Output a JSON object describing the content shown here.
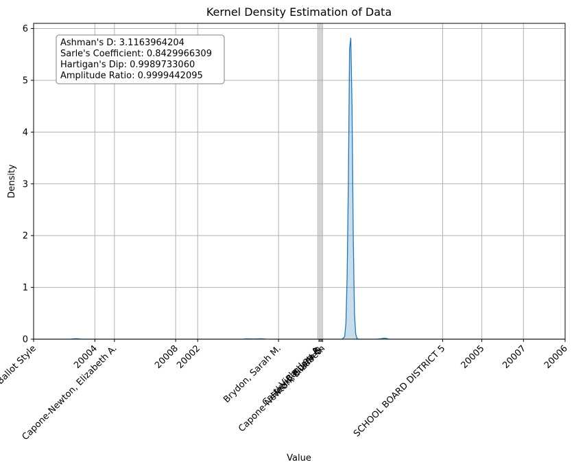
{
  "chart_data": {
    "type": "area",
    "title": "Kernel Density Estimation of Data",
    "xlabel": "Value",
    "ylabel": "Density",
    "ylim": [
      0,
      6.1
    ],
    "grid": true,
    "series_color": "#1f77b4",
    "x_ticks": [
      {
        "label": "Ballot Style",
        "pos": 0.0
      },
      {
        "label": "20004",
        "pos": 0.25
      },
      {
        "label": "Capone-Newton, Elizabeth A.",
        "pos": 0.33
      },
      {
        "label": "20008",
        "pos": 0.58
      },
      {
        "label": "20002",
        "pos": 0.67
      },
      {
        "label": "Brydon, Sarah M.",
        "pos": 1.0
      },
      {
        "label": "Viola, Lou A.",
        "pos": 1.165
      },
      {
        "label": "Castle, Barbara B.",
        "pos": 1.17
      },
      {
        "label": "Hecht, Susan S.",
        "pos": 1.175
      },
      {
        "label": "Capone-Newton, Elizabeth",
        "pos": 1.18
      },
      {
        "label": "SCHOOL BOARD DISTRICT 5",
        "pos": 1.67
      },
      {
        "label": "20005",
        "pos": 1.83
      },
      {
        "label": "20007",
        "pos": 2.0
      },
      {
        "label": "20006",
        "pos": 2.17
      }
    ],
    "y_ticks": [
      0,
      1,
      2,
      3,
      4,
      5,
      6
    ],
    "x_grid_extra": [
      1.16
    ],
    "x_range": [
      0.0,
      2.17
    ],
    "density_curve": {
      "x": [
        0.0,
        0.15,
        0.16,
        0.17,
        0.18,
        0.19,
        0.2,
        0.3,
        0.85,
        0.87,
        0.9,
        0.93,
        0.95,
        1.0,
        1.1,
        1.2,
        1.26,
        1.27,
        1.275,
        1.28,
        1.285,
        1.29,
        1.295,
        1.3,
        1.305,
        1.31,
        1.315,
        1.32,
        1.325,
        1.33,
        1.34,
        1.35,
        1.4,
        1.42,
        1.43,
        1.44,
        1.45,
        1.5,
        1.6,
        2.17
      ],
      "y": [
        0.0,
        0.0,
        0.005,
        0.01,
        0.008,
        0.003,
        0.0,
        0.0,
        0.0,
        0.006,
        0.003,
        0.008,
        0.002,
        0.0,
        0.0,
        0.0,
        0.0,
        0.05,
        0.3,
        1.2,
        3.0,
        5.6,
        5.82,
        4.5,
        2.0,
        0.5,
        0.1,
        0.02,
        0.0,
        0.0,
        0.0,
        0.0,
        0.0,
        0.01,
        0.02,
        0.015,
        0.0,
        0.0,
        0.0,
        0.0
      ]
    },
    "stats_box": {
      "lines": [
        "Ashman's D: 3.1163964204",
        "Sarle's Coefficient: 0.8429966309",
        "Hartigan's Dip: 0.9989733060",
        "Amplitude Ratio: 0.9999442095"
      ]
    }
  }
}
